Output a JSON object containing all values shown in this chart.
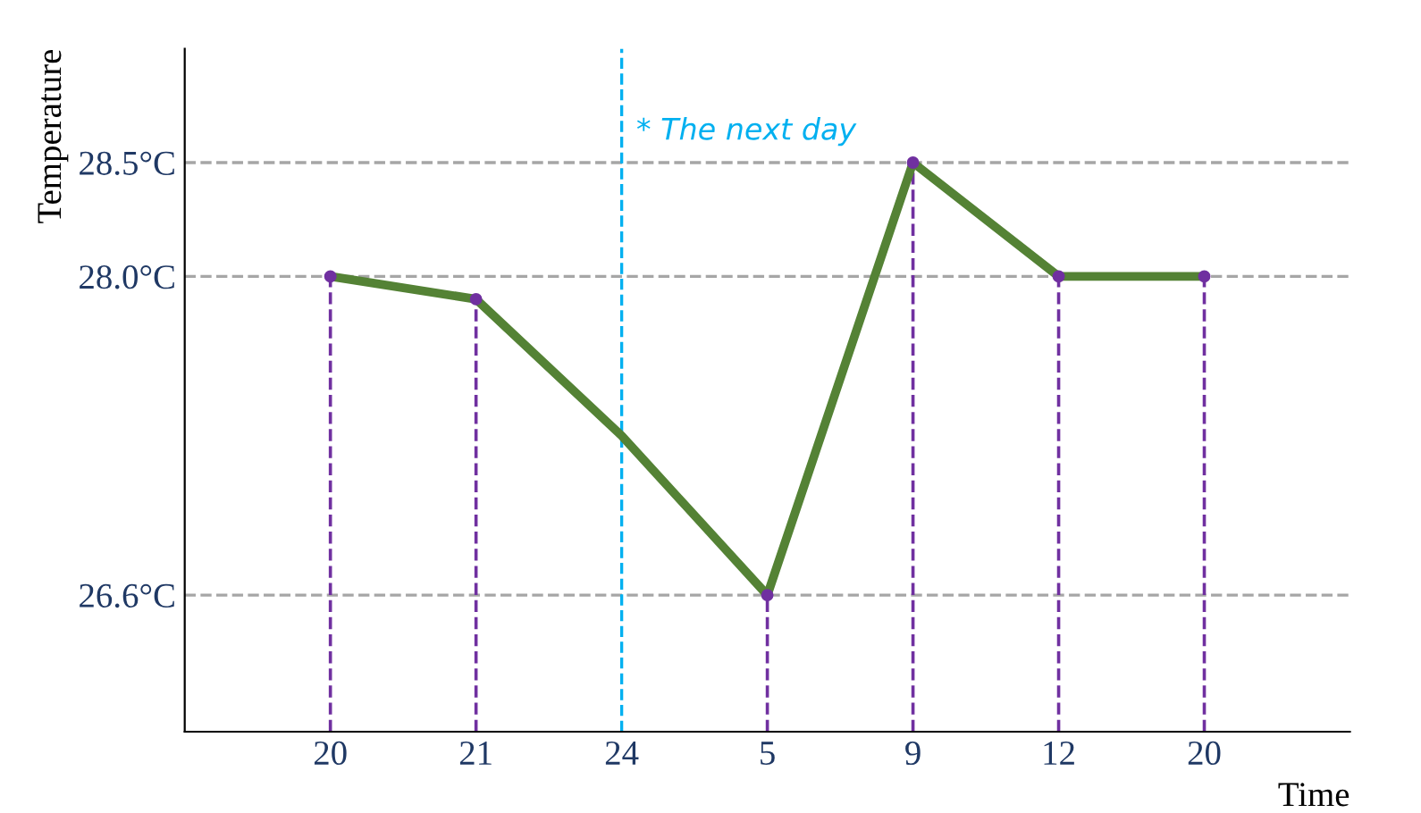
{
  "chart_data": {
    "type": "line",
    "xlabel": "Time",
    "ylabel": "Temperature",
    "categories": [
      "20",
      "21",
      "24",
      "5",
      "9",
      "12",
      "20"
    ],
    "series": [
      {
        "color": "#548235",
        "values": [
          28.0,
          27.9,
          27.3,
          26.6,
          28.5,
          28.0,
          28.0
        ]
      },
      {
        "type": "lollipop",
        "color": "#7030a0",
        "line_style": "dashed",
        "marker": "circle",
        "values": [
          28.0,
          27.9,
          null,
          26.6,
          28.5,
          28.0,
          28.0
        ]
      }
    ],
    "ylim": [
      26.0,
      29.0
    ],
    "yticks": [
      {
        "value": 26.6,
        "label": "26.6°C"
      },
      {
        "value": 28.0,
        "label": "28.0°C"
      },
      {
        "value": 28.5,
        "label": "28.5°C"
      }
    ],
    "ref_lines": [
      {
        "axis": "y",
        "value": 26.6,
        "color": "#a6a6a6",
        "line_style": "dashed"
      },
      {
        "axis": "y",
        "value": 28.0,
        "color": "#a6a6a6",
        "line_style": "dashed"
      },
      {
        "axis": "y",
        "value": 28.5,
        "color": "#a6a6a6",
        "line_style": "dashed"
      },
      {
        "axis": "x",
        "value": "24",
        "color": "#00b0f0",
        "line_style": "dashed",
        "label": "* The next day"
      }
    ],
    "grid": false,
    "legend": false,
    "marker": "none",
    "line_style": "solid"
  }
}
